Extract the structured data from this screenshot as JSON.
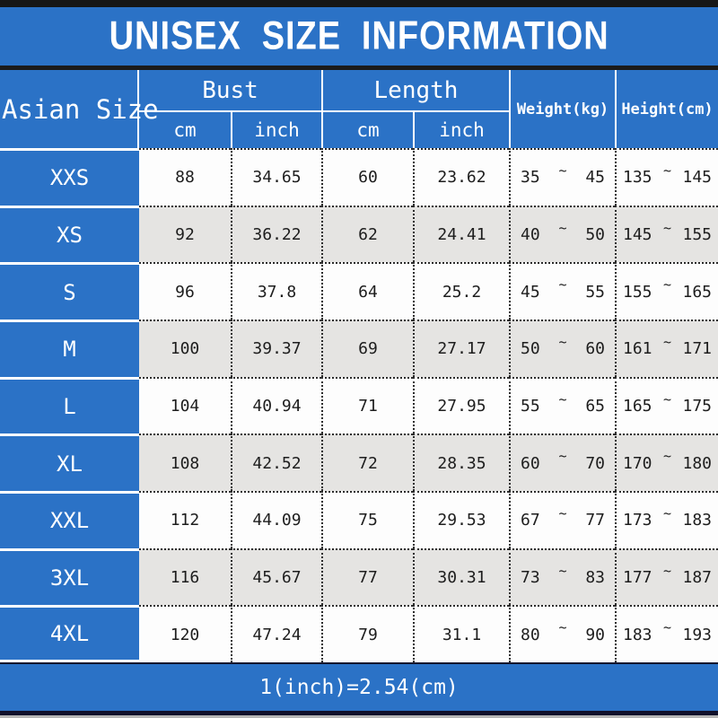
{
  "title": "UNISEX SIZE INFORMATION",
  "header": {
    "corner": "Asian Size",
    "bust_label": "Bust",
    "length_label": "Length",
    "bust_cm": "cm",
    "bust_inch": "inch",
    "length_cm": "cm",
    "length_inch": "inch",
    "weight": "Weight(kg)",
    "height": "Height(cm)"
  },
  "tilde": "~",
  "rows": [
    {
      "size": "XXS",
      "bust_cm": "88",
      "bust_inch": "34.65",
      "length_cm": "60",
      "length_inch": "23.62",
      "weight_min": "35",
      "weight_max": "45",
      "height_min": "135",
      "height_max": "145"
    },
    {
      "size": "XS",
      "bust_cm": "92",
      "bust_inch": "36.22",
      "length_cm": "62",
      "length_inch": "24.41",
      "weight_min": "40",
      "weight_max": "50",
      "height_min": "145",
      "height_max": "155"
    },
    {
      "size": "S",
      "bust_cm": "96",
      "bust_inch": "37.8",
      "length_cm": "64",
      "length_inch": "25.2",
      "weight_min": "45",
      "weight_max": "55",
      "height_min": "155",
      "height_max": "165"
    },
    {
      "size": "M",
      "bust_cm": "100",
      "bust_inch": "39.37",
      "length_cm": "69",
      "length_inch": "27.17",
      "weight_min": "50",
      "weight_max": "60",
      "height_min": "161",
      "height_max": "171"
    },
    {
      "size": "L",
      "bust_cm": "104",
      "bust_inch": "40.94",
      "length_cm": "71",
      "length_inch": "27.95",
      "weight_min": "55",
      "weight_max": "65",
      "height_min": "165",
      "height_max": "175"
    },
    {
      "size": "XL",
      "bust_cm": "108",
      "bust_inch": "42.52",
      "length_cm": "72",
      "length_inch": "28.35",
      "weight_min": "60",
      "weight_max": "70",
      "height_min": "170",
      "height_max": "180"
    },
    {
      "size": "XXL",
      "bust_cm": "112",
      "bust_inch": "44.09",
      "length_cm": "75",
      "length_inch": "29.53",
      "weight_min": "67",
      "weight_max": "77",
      "height_min": "173",
      "height_max": "183"
    },
    {
      "size": "3XL",
      "bust_cm": "116",
      "bust_inch": "45.67",
      "length_cm": "77",
      "length_inch": "30.31",
      "weight_min": "73",
      "weight_max": "83",
      "height_min": "177",
      "height_max": "187"
    },
    {
      "size": "4XL",
      "bust_cm": "120",
      "bust_inch": "47.24",
      "length_cm": "79",
      "length_inch": "31.1",
      "weight_min": "80",
      "weight_max": "90",
      "height_min": "183",
      "height_max": "193"
    }
  ],
  "footer": {
    "note": "1(inch)=2.54(cm)"
  },
  "colors": {
    "blue": "#2b72c6",
    "row_white": "#fdfdfd",
    "row_gray": "#e5e4e2",
    "top_bar": "#161616",
    "bottom_bar": "#10102a"
  }
}
